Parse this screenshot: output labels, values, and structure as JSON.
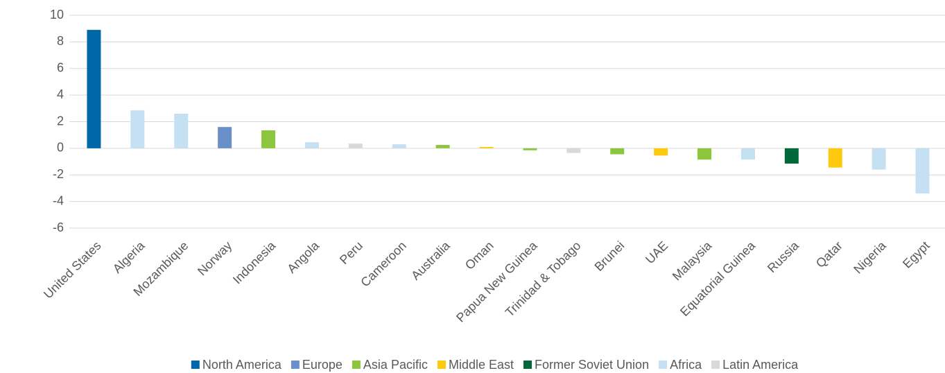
{
  "chart_data": {
    "type": "bar",
    "categories": [
      "United States",
      "Algeria",
      "Mozambique",
      "Norway",
      "Indonesia",
      "Angola",
      "Peru",
      "Cameroon",
      "Australia",
      "Oman",
      "Papua New Guinea",
      "Trinidad & Tobago",
      "Brunei",
      "UAE",
      "Malaysia",
      "Equatorial Guinea",
      "Russia",
      "Qatar",
      "Nigeria",
      "Egypt"
    ],
    "series": [
      {
        "name": "North America",
        "color": "#0067a8",
        "values": [
          8.9,
          null,
          null,
          null,
          null,
          null,
          null,
          null,
          null,
          null,
          null,
          null,
          null,
          null,
          null,
          null,
          null,
          null,
          null,
          null
        ]
      },
      {
        "name": "Europe",
        "color": "#6b8fc9",
        "values": [
          null,
          null,
          null,
          1.6,
          null,
          null,
          null,
          null,
          null,
          null,
          null,
          null,
          null,
          null,
          null,
          null,
          null,
          null,
          null,
          null
        ]
      },
      {
        "name": "Asia Pacific",
        "color": "#8cc63f",
        "values": [
          null,
          null,
          null,
          null,
          1.35,
          null,
          null,
          null,
          0.25,
          null,
          -0.15,
          null,
          -0.45,
          null,
          -0.85,
          null,
          null,
          null,
          null,
          null
        ]
      },
      {
        "name": "Middle East",
        "color": "#ffc910",
        "values": [
          null,
          null,
          null,
          null,
          null,
          null,
          null,
          null,
          null,
          0.1,
          null,
          null,
          null,
          -0.55,
          null,
          null,
          null,
          -1.45,
          null,
          null
        ]
      },
      {
        "name": "Former Soviet Union",
        "color": "#006838",
        "values": [
          null,
          null,
          null,
          null,
          null,
          null,
          null,
          null,
          null,
          null,
          null,
          null,
          null,
          null,
          null,
          null,
          -1.15,
          null,
          null,
          null
        ]
      },
      {
        "name": "Africa",
        "color": "#c5dff3",
        "values": [
          null,
          2.85,
          2.6,
          null,
          null,
          0.45,
          null,
          0.3,
          null,
          null,
          null,
          null,
          null,
          null,
          null,
          -0.85,
          null,
          null,
          -1.6,
          -3.4
        ]
      },
      {
        "name": "Latin America",
        "color": "#d9d9d9",
        "values": [
          null,
          null,
          null,
          null,
          null,
          null,
          0.35,
          null,
          null,
          null,
          null,
          -0.35,
          null,
          null,
          null,
          null,
          null,
          null,
          null,
          null
        ]
      }
    ],
    "ylim": [
      -6,
      10
    ],
    "yticks": [
      -6,
      -4,
      -2,
      0,
      2,
      4,
      6,
      8,
      10
    ],
    "grid": true,
    "legend": "bottom"
  }
}
